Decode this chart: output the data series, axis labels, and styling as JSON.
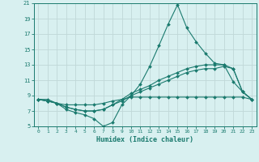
{
  "xlabel": "Humidex (Indice chaleur)",
  "x": [
    0,
    1,
    2,
    3,
    4,
    5,
    6,
    7,
    8,
    9,
    10,
    11,
    12,
    13,
    14,
    15,
    16,
    17,
    18,
    19,
    20,
    21,
    22,
    23
  ],
  "line1": [
    8.5,
    8.5,
    8.0,
    7.2,
    6.8,
    6.5,
    6.0,
    5.0,
    5.5,
    7.8,
    9.0,
    10.5,
    12.8,
    15.5,
    18.3,
    20.8,
    17.8,
    16.0,
    14.5,
    13.2,
    13.0,
    10.8,
    9.5,
    8.5
  ],
  "line2": [
    8.5,
    8.3,
    8.0,
    7.5,
    7.2,
    7.0,
    7.0,
    7.2,
    7.8,
    8.3,
    9.0,
    9.5,
    10.0,
    10.5,
    11.0,
    11.5,
    12.0,
    12.3,
    12.5,
    12.5,
    12.8,
    12.5,
    9.5,
    8.5
  ],
  "line3": [
    8.5,
    8.3,
    8.0,
    7.5,
    7.2,
    7.0,
    7.0,
    7.2,
    7.8,
    8.5,
    9.3,
    9.8,
    10.3,
    11.0,
    11.5,
    12.0,
    12.5,
    12.8,
    13.0,
    13.0,
    13.0,
    12.5,
    9.5,
    8.5
  ],
  "line4": [
    8.5,
    8.3,
    8.0,
    7.8,
    7.8,
    7.8,
    7.8,
    8.0,
    8.3,
    8.5,
    8.8,
    8.8,
    8.8,
    8.8,
    8.8,
    8.8,
    8.8,
    8.8,
    8.8,
    8.8,
    8.8,
    8.8,
    8.8,
    8.5
  ],
  "color": "#1a7a6e",
  "bg_color": "#d8f0f0",
  "grid_color": "#c0d8d8",
  "ylim": [
    5,
    21
  ],
  "yticks": [
    5,
    7,
    9,
    11,
    13,
    15,
    17,
    19,
    21
  ],
  "xlim_min": -0.5,
  "xlim_max": 23.5,
  "xticks": [
    0,
    1,
    2,
    3,
    4,
    5,
    6,
    7,
    8,
    9,
    10,
    11,
    12,
    13,
    14,
    15,
    16,
    17,
    18,
    19,
    20,
    21,
    22,
    23
  ]
}
